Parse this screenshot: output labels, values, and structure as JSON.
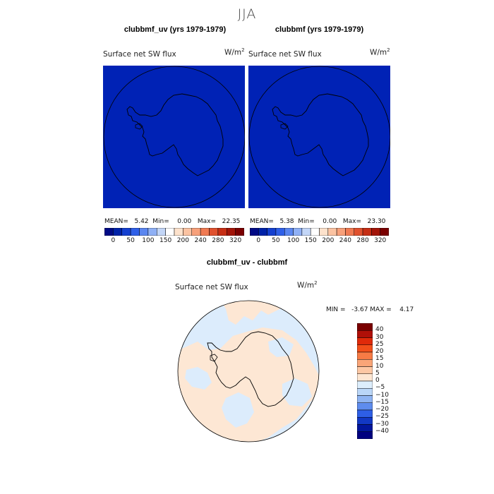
{
  "title": "JJA",
  "panels": [
    {
      "title": "clubbmf_uv (yrs 1979-1979)",
      "variable": "Surface net SW flux",
      "units_base": "W/m",
      "units_exp": "2",
      "stats": {
        "mean": "5.42",
        "min": "0.00",
        "max": "22.35"
      },
      "stats_labels": {
        "mean": "MEAN=",
        "min": "Min=",
        "max": "Max="
      }
    },
    {
      "title": "clubbmf (yrs 1979-1979)",
      "variable": "Surface net SW flux",
      "units_base": "W/m",
      "units_exp": "2",
      "stats": {
        "mean": "5.38",
        "min": "0.00",
        "max": "23.30"
      },
      "stats_labels": {
        "mean": "MEAN=",
        "min": "Min=",
        "max": "Max="
      }
    }
  ],
  "diff_panel": {
    "title": "clubbmf_uv - clubbmf",
    "variable": "Surface net SW flux",
    "units_base": "W/m",
    "units_exp": "2",
    "stats_text": "MIN =   -3.67 MAX =    4.17"
  },
  "colorbar_top": {
    "colors": [
      "#000a85",
      "#0022a8",
      "#1440d0",
      "#2f60e8",
      "#5a86f0",
      "#8fb0f5",
      "#c3d6f7",
      "#ffffff",
      "#fde2cc",
      "#fbc3a2",
      "#f7a07a",
      "#f07a52",
      "#e0512e",
      "#c62e14",
      "#a21408",
      "#7a0000"
    ],
    "tick_labels": [
      "0",
      "50",
      "100",
      "150",
      "200",
      "240",
      "280",
      "320"
    ]
  },
  "colorbar_diff": {
    "colors": [
      "#7a0000",
      "#b01008",
      "#e02a0a",
      "#f24f1a",
      "#f77b45",
      "#f9a578",
      "#fcc7a4",
      "#fde6d2",
      "#ddeefc",
      "#bad6f7",
      "#8fb4f2",
      "#5e8cee",
      "#2e5fe6",
      "#1238c4",
      "#02169c",
      "#000080"
    ],
    "tick_labels": [
      "40",
      "30",
      "25",
      "20",
      "15",
      "10",
      "5",
      "0",
      "−5",
      "−10",
      "−15",
      "−20",
      "−25",
      "−30",
      "−40"
    ]
  },
  "map_colors": {
    "uniform_fill": "#0022b5",
    "diff_positive": "#fde7d4",
    "diff_negative": "#dcecfc"
  }
}
